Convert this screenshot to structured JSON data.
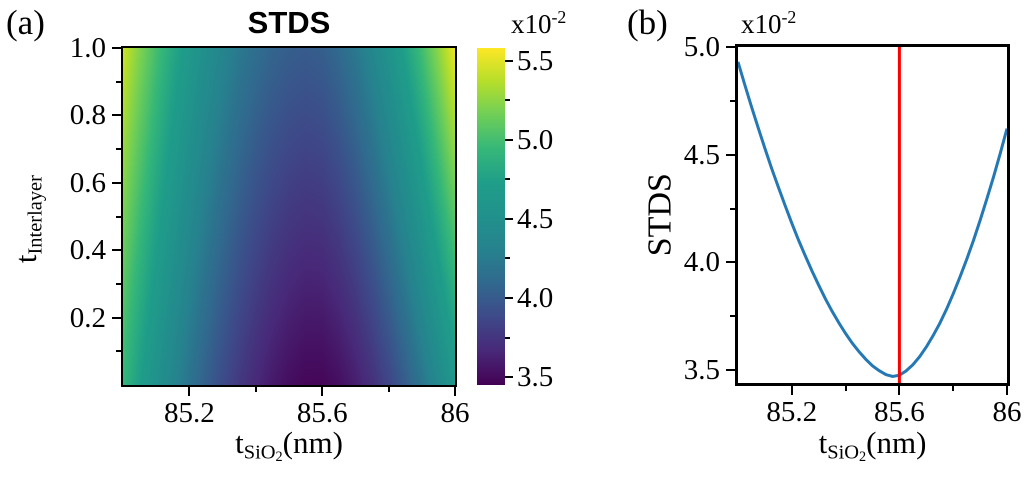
{
  "figure": {
    "background": "#ffffff",
    "panel_a_label": "(a)",
    "panel_b_label": "(b)"
  },
  "chart_data": [
    {
      "type": "heatmap",
      "panel": "a",
      "title": "STDS",
      "xlabel": {
        "base": "t",
        "sub": "SiO",
        "subsub": "2",
        "suffix": "(nm)"
      },
      "ylabel": {
        "base": "t",
        "sub": "Interlayer"
      },
      "xlim": [
        85.0,
        86.0
      ],
      "ylim": [
        0.0,
        1.0
      ],
      "xticks": [
        85.2,
        85.6,
        86.0
      ],
      "xtick_labels": [
        "85.2",
        "85.6",
        "86"
      ],
      "xminorticks": [
        85.4,
        85.8
      ],
      "yticks": [
        0.2,
        0.4,
        0.6,
        0.8,
        1.0
      ],
      "ytick_labels": [
        "0.2",
        "0.4",
        "0.6",
        "0.8",
        "1.0"
      ],
      "yminorticks": [
        0.1,
        0.3,
        0.5,
        0.7,
        0.9
      ],
      "colormap": "viridis",
      "colormap_stops": [
        "#440154",
        "#482878",
        "#3e4989",
        "#31688e",
        "#26828e",
        "#21918c",
        "#1f9e89",
        "#35b779",
        "#6ece58",
        "#b5de2b",
        "#fde725"
      ],
      "vmin": 3.45,
      "vmax": 5.58,
      "colorbar": {
        "scale_label": {
          "base": "x10",
          "sup": "-2"
        },
        "ticks": [
          3.5,
          4.0,
          4.5,
          5.0,
          5.5
        ],
        "tick_labels": [
          "3.5",
          "4.0",
          "4.5",
          "5.0",
          "5.5"
        ],
        "minorticks": [
          3.75,
          4.25,
          4.75,
          5.25
        ]
      },
      "grid_x": [
        85.0,
        85.05,
        85.1,
        85.15,
        85.2,
        85.25,
        85.3,
        85.35,
        85.4,
        85.45,
        85.5,
        85.55,
        85.6,
        85.65,
        85.7,
        85.75,
        85.8,
        85.85,
        85.9,
        85.95,
        86.0
      ],
      "grid_y": [
        0.0,
        0.25,
        0.5,
        0.75,
        1.0
      ],
      "grid_values": [
        [
          4.931,
          4.724,
          4.529,
          4.349,
          4.182,
          4.03,
          3.894,
          3.773,
          3.67,
          3.585,
          3.52,
          3.479,
          3.476,
          3.525,
          3.607,
          3.717,
          3.854,
          4.013,
          4.195,
          4.398,
          4.621
        ],
        [
          5.056,
          4.845,
          4.646,
          4.464,
          4.296,
          4.143,
          4.008,
          3.888,
          3.788,
          3.706,
          3.646,
          3.61,
          3.614,
          3.67,
          3.761,
          3.88,
          4.028,
          4.198,
          4.392,
          4.609,
          4.846
        ],
        [
          5.181,
          4.965,
          4.764,
          4.579,
          4.409,
          4.256,
          4.121,
          4.003,
          3.905,
          3.827,
          3.772,
          3.741,
          3.751,
          3.815,
          3.914,
          4.043,
          4.201,
          4.383,
          4.59,
          4.82,
          5.071
        ],
        [
          5.306,
          5.086,
          4.881,
          4.693,
          4.523,
          4.369,
          4.235,
          4.118,
          4.023,
          3.948,
          3.897,
          3.872,
          3.889,
          3.96,
          4.068,
          4.206,
          4.375,
          4.567,
          4.787,
          5.03,
          5.296
        ],
        [
          5.431,
          5.206,
          4.998,
          4.808,
          4.636,
          4.482,
          4.348,
          4.233,
          4.14,
          4.069,
          4.023,
          4.003,
          4.026,
          4.105,
          4.221,
          4.369,
          4.548,
          4.752,
          4.984,
          5.241,
          5.521
        ]
      ]
    },
    {
      "type": "line",
      "panel": "b",
      "ylabel": "STDS",
      "xlabel": {
        "base": "t",
        "sub": "SiO",
        "subsub": "2",
        "suffix": "(nm)"
      },
      "scale_label": {
        "base": "x10",
        "sup": "-2"
      },
      "xlim": [
        85.0,
        86.0
      ],
      "ylim": [
        3.44,
        5.0
      ],
      "xticks": [
        85.2,
        85.6,
        86.0
      ],
      "xtick_labels": [
        "85.2",
        "85.6",
        "86"
      ],
      "xminorticks": [
        85.4,
        85.8
      ],
      "yticks": [
        3.5,
        4.0,
        4.5,
        5.0
      ],
      "ytick_labels": [
        "3.5",
        "4.0",
        "4.5",
        "5.0"
      ],
      "yminorticks": [
        3.75,
        4.25,
        4.75
      ],
      "series": [
        {
          "name": "STDS",
          "color": "#2478b4",
          "x": [
            85.0,
            85.025,
            85.05,
            85.075,
            85.1,
            85.125,
            85.15,
            85.175,
            85.2,
            85.225,
            85.25,
            85.275,
            85.3,
            85.325,
            85.35,
            85.375,
            85.4,
            85.425,
            85.45,
            85.475,
            85.5,
            85.525,
            85.55,
            85.575,
            85.6,
            85.625,
            85.65,
            85.675,
            85.7,
            85.725,
            85.75,
            85.775,
            85.8,
            85.825,
            85.85,
            85.875,
            85.9,
            85.925,
            85.95,
            85.975,
            86.0
          ],
          "y": [
            4.931,
            4.826,
            4.724,
            4.625,
            4.529,
            4.437,
            4.349,
            4.264,
            4.182,
            4.104,
            4.03,
            3.96,
            3.894,
            3.831,
            3.773,
            3.719,
            3.67,
            3.625,
            3.585,
            3.55,
            3.52,
            3.497,
            3.479,
            3.47,
            3.476,
            3.496,
            3.525,
            3.562,
            3.607,
            3.659,
            3.717,
            3.782,
            3.854,
            3.931,
            4.013,
            4.101,
            4.195,
            4.294,
            4.398,
            4.507,
            4.621
          ]
        }
      ],
      "vline": {
        "x": 85.6,
        "color": "#ff0000"
      }
    }
  ]
}
